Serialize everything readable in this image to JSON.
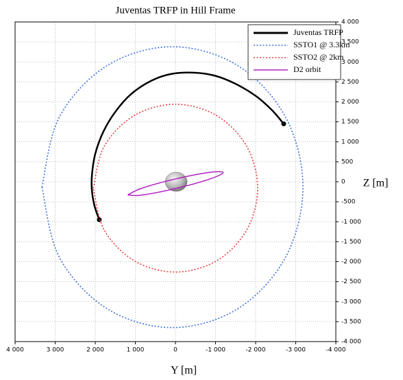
{
  "chart_data": {
    "type": "line",
    "title": "Juventas TRFP in Hill Frame",
    "x_label": "Y [m]",
    "y_label": "Z [m]",
    "xlim": [
      4000,
      -4000
    ],
    "ylim": [
      -4000,
      4000
    ],
    "xticks": [
      {
        "value": 4000,
        "label": "4 000"
      },
      {
        "value": 3000,
        "label": "3 000"
      },
      {
        "value": 2000,
        "label": "2 000"
      },
      {
        "value": 1000,
        "label": "1 000"
      },
      0,
      {
        "value": -1000,
        "label": "-1 000"
      },
      {
        "value": -2000,
        "label": "-2 000"
      },
      {
        "value": -3000,
        "label": "-3 000"
      },
      {
        "value": -4000,
        "label": "-4 000"
      }
    ],
    "yticks": [
      {
        "value": 4000,
        "label": "4 000"
      },
      {
        "value": 3500,
        "label": "3 500"
      },
      {
        "value": 3000,
        "label": "3 000"
      },
      {
        "value": 2500,
        "label": "2 500"
      },
      {
        "value": 2000,
        "label": "2 000"
      },
      {
        "value": 1500,
        "label": "1 500"
      },
      {
        "value": 1000,
        "label": "1 000"
      },
      500,
      0,
      -500,
      {
        "value": -1000,
        "label": "-1 000"
      },
      {
        "value": -1500,
        "label": "-1 500"
      },
      {
        "value": -2000,
        "label": "-2 000"
      },
      {
        "value": -2500,
        "label": "-2 500"
      },
      {
        "value": -3000,
        "label": "-3 000"
      },
      {
        "value": -3500,
        "label": "-3 500"
      },
      {
        "value": -4000,
        "label": "-4 000"
      }
    ],
    "grid": true,
    "legend": "upper right",
    "series": [
      {
        "name": "Juventas TRFP",
        "color": "#000000",
        "style": "solid",
        "end_markers": true,
        "x": [
          1900,
          2020,
          2085,
          2080,
          2000,
          1800,
          1500,
          1100,
          600,
          100,
          -480,
          -1000,
          -1500,
          -2000,
          -2400,
          -2700
        ],
        "y": [
          -950,
          -600,
          -200,
          200,
          700,
          1250,
          1750,
          2200,
          2530,
          2700,
          2730,
          2650,
          2450,
          2150,
          1800,
          1450
        ]
      },
      {
        "name": "SSTO1 @ 3.3km",
        "color": "#3a6fd8",
        "style": "dotted",
        "x": [
          3330,
          2894,
          1703,
          75,
          -1553,
          -2744,
          -3180,
          -2744,
          -1553,
          75,
          1703,
          2894,
          3330
        ],
        "y": [
          -135,
          1623,
          2909,
          3380,
          2909,
          1623,
          -135,
          -1893,
          -3179,
          -3650,
          -3179,
          -1893,
          -135
        ]
      },
      {
        "name": "SSTO2 @ 2km",
        "color": "#e8383d",
        "style": "dotted",
        "x": [
          2050,
          1775,
          1025,
          0,
          -1025,
          -1775,
          -2050,
          -1775,
          -1025,
          0,
          1025,
          1775,
          2050
        ],
        "y": [
          -160,
          890,
          1659,
          1940,
          1659,
          890,
          -160,
          -1210,
          -1979,
          -2260,
          -1979,
          -1210,
          -160
        ]
      },
      {
        "name": "D2 orbit",
        "color": "#b020c0",
        "style": "solid",
        "x": [
          1190,
          841,
          0,
          -841,
          -1190,
          -841,
          0,
          841,
          1190
        ],
        "y": [
          -330,
          -163,
          70,
          233,
          230,
          63,
          -170,
          -333,
          -330
        ]
      }
    ]
  }
}
